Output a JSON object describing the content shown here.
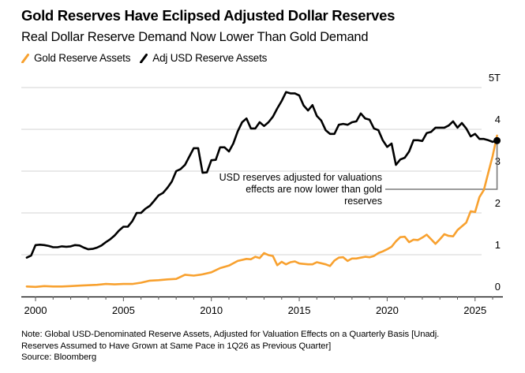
{
  "header": {
    "title": "Gold Reserves Have Eclipsed Adjusted Dollar Reserves",
    "subtitle": "Real Dollar Reserve Demand Now Lower Than Gold Demand"
  },
  "legend": [
    {
      "label": "Gold Reserve Assets",
      "color": "#f8a12f",
      "icon": "line-swatch-icon"
    },
    {
      "label": "Adj USD Reserve Assets",
      "color": "#000000",
      "icon": "line-swatch-icon"
    }
  ],
  "footer": {
    "note_line1": "Note: Global USD-Denominated Reserve Assets, Adjusted for Valuation Effects on a Quarterly Basis [Unadj.",
    "note_line2": "Reserves Assumed to Have Grown at Same Pace in 1Q26 as Previous Quarter]",
    "source": "Source: Bloomberg"
  },
  "chart_data": {
    "type": "line",
    "title": "Gold Reserves Have Eclipsed Adjusted Dollar Reserves",
    "subtitle": "Real Dollar Reserve Demand Now Lower Than Gold Demand",
    "xlabel": "",
    "ylabel": "",
    "xlim": [
      1999.4,
      2026.6
    ],
    "ylim": [
      0,
      5
    ],
    "x_ticks": [
      2000,
      2005,
      2010,
      2015,
      2020,
      2025
    ],
    "x_tick_labels": [
      "2000",
      "2005",
      "2010",
      "2015",
      "2020",
      "2025"
    ],
    "y_ticks": [
      0,
      1,
      2,
      3,
      4,
      5
    ],
    "y_tick_labels": [
      "0",
      "1",
      "2",
      "3",
      "4",
      "5T"
    ],
    "y_axis_position": "right",
    "grid": "horizontal",
    "legend_position": "top-left",
    "series": [
      {
        "name": "Gold Reserve Assets",
        "color": "#f8a12f",
        "points": [
          [
            1999.5,
            0.24
          ],
          [
            2000.0,
            0.23
          ],
          [
            2000.5,
            0.25
          ],
          [
            2001.0,
            0.24
          ],
          [
            2001.5,
            0.24
          ],
          [
            2002.0,
            0.25
          ],
          [
            2002.5,
            0.26
          ],
          [
            2003.0,
            0.27
          ],
          [
            2003.5,
            0.28
          ],
          [
            2004.0,
            0.3
          ],
          [
            2004.5,
            0.29
          ],
          [
            2005.0,
            0.3
          ],
          [
            2005.5,
            0.3
          ],
          [
            2006.0,
            0.33
          ],
          [
            2006.5,
            0.38
          ],
          [
            2007.0,
            0.39
          ],
          [
            2007.5,
            0.41
          ],
          [
            2008.0,
            0.42
          ],
          [
            2008.5,
            0.52
          ],
          [
            2009.0,
            0.5
          ],
          [
            2009.5,
            0.53
          ],
          [
            2010.0,
            0.58
          ],
          [
            2010.5,
            0.68
          ],
          [
            2011.0,
            0.74
          ],
          [
            2011.5,
            0.85
          ],
          [
            2012.0,
            0.9
          ],
          [
            2012.25,
            0.89
          ],
          [
            2012.5,
            0.95
          ],
          [
            2012.75,
            0.92
          ],
          [
            2013.0,
            1.04
          ],
          [
            2013.25,
            0.99
          ],
          [
            2013.5,
            0.97
          ],
          [
            2013.75,
            0.75
          ],
          [
            2014.0,
            0.83
          ],
          [
            2014.25,
            0.77
          ],
          [
            2014.5,
            0.82
          ],
          [
            2014.75,
            0.84
          ],
          [
            2015.0,
            0.79
          ],
          [
            2015.5,
            0.77
          ],
          [
            2015.75,
            0.77
          ],
          [
            2016.0,
            0.82
          ],
          [
            2016.5,
            0.77
          ],
          [
            2016.75,
            0.73
          ],
          [
            2017.0,
            0.86
          ],
          [
            2017.25,
            0.93
          ],
          [
            2017.5,
            0.94
          ],
          [
            2017.75,
            0.85
          ],
          [
            2018.0,
            0.91
          ],
          [
            2018.25,
            0.91
          ],
          [
            2018.5,
            0.93
          ],
          [
            2018.75,
            0.95
          ],
          [
            2019.0,
            0.94
          ],
          [
            2019.25,
            0.97
          ],
          [
            2019.5,
            1.04
          ],
          [
            2019.75,
            1.08
          ],
          [
            2020.0,
            1.13
          ],
          [
            2020.25,
            1.19
          ],
          [
            2020.5,
            1.32
          ],
          [
            2020.75,
            1.42
          ],
          [
            2021.0,
            1.43
          ],
          [
            2021.25,
            1.3
          ],
          [
            2021.5,
            1.36
          ],
          [
            2021.75,
            1.35
          ],
          [
            2022.0,
            1.41
          ],
          [
            2022.25,
            1.48
          ],
          [
            2022.5,
            1.37
          ],
          [
            2022.75,
            1.26
          ],
          [
            2023.0,
            1.37
          ],
          [
            2023.25,
            1.49
          ],
          [
            2023.5,
            1.45
          ],
          [
            2023.75,
            1.44
          ],
          [
            2024.0,
            1.59
          ],
          [
            2024.5,
            1.77
          ],
          [
            2024.75,
            2.04
          ],
          [
            2025.0,
            2.02
          ],
          [
            2025.25,
            2.38
          ],
          [
            2025.5,
            2.55
          ],
          [
            2025.75,
            2.96
          ],
          [
            2026.0,
            3.36
          ],
          [
            2026.25,
            3.85
          ]
        ]
      },
      {
        "name": "Adj USD Reserve Assets",
        "color": "#000000",
        "points": [
          [
            1999.5,
            0.93
          ],
          [
            1999.75,
            0.98
          ],
          [
            2000.0,
            1.23
          ],
          [
            2000.25,
            1.24
          ],
          [
            2000.5,
            1.23
          ],
          [
            2000.75,
            1.21
          ],
          [
            2001.0,
            1.18
          ],
          [
            2001.25,
            1.18
          ],
          [
            2001.5,
            1.2
          ],
          [
            2001.75,
            1.19
          ],
          [
            2002.0,
            1.2
          ],
          [
            2002.25,
            1.23
          ],
          [
            2002.5,
            1.22
          ],
          [
            2002.75,
            1.17
          ],
          [
            2003.0,
            1.13
          ],
          [
            2003.25,
            1.14
          ],
          [
            2003.5,
            1.17
          ],
          [
            2003.75,
            1.22
          ],
          [
            2004.0,
            1.3
          ],
          [
            2004.25,
            1.37
          ],
          [
            2004.5,
            1.46
          ],
          [
            2004.75,
            1.58
          ],
          [
            2005.0,
            1.67
          ],
          [
            2005.25,
            1.67
          ],
          [
            2005.5,
            1.8
          ],
          [
            2005.75,
            2.0
          ],
          [
            2006.0,
            2.0
          ],
          [
            2006.25,
            2.1
          ],
          [
            2006.5,
            2.17
          ],
          [
            2006.75,
            2.29
          ],
          [
            2007.0,
            2.42
          ],
          [
            2007.25,
            2.48
          ],
          [
            2007.5,
            2.6
          ],
          [
            2007.75,
            2.75
          ],
          [
            2008.0,
            3.0
          ],
          [
            2008.25,
            3.05
          ],
          [
            2008.5,
            3.15
          ],
          [
            2008.75,
            3.35
          ],
          [
            2009.0,
            3.55
          ],
          [
            2009.25,
            3.55
          ],
          [
            2009.5,
            2.96
          ],
          [
            2009.75,
            2.97
          ],
          [
            2010.0,
            3.26
          ],
          [
            2010.25,
            3.27
          ],
          [
            2010.5,
            3.57
          ],
          [
            2010.75,
            3.57
          ],
          [
            2011.0,
            3.47
          ],
          [
            2011.25,
            3.66
          ],
          [
            2011.5,
            3.95
          ],
          [
            2011.75,
            4.17
          ],
          [
            2012.0,
            4.26
          ],
          [
            2012.25,
            4.02
          ],
          [
            2012.5,
            4.02
          ],
          [
            2012.75,
            4.17
          ],
          [
            2013.0,
            4.08
          ],
          [
            2013.25,
            4.17
          ],
          [
            2013.5,
            4.3
          ],
          [
            2013.75,
            4.5
          ],
          [
            2014.0,
            4.68
          ],
          [
            2014.25,
            4.89
          ],
          [
            2014.5,
            4.86
          ],
          [
            2014.75,
            4.86
          ],
          [
            2015.0,
            4.81
          ],
          [
            2015.25,
            4.57
          ],
          [
            2015.5,
            4.45
          ],
          [
            2015.75,
            4.58
          ],
          [
            2016.0,
            4.32
          ],
          [
            2016.25,
            4.21
          ],
          [
            2016.5,
            3.98
          ],
          [
            2016.75,
            3.89
          ],
          [
            2017.0,
            3.89
          ],
          [
            2017.25,
            4.11
          ],
          [
            2017.5,
            4.13
          ],
          [
            2017.75,
            4.11
          ],
          [
            2018.0,
            4.17
          ],
          [
            2018.25,
            4.19
          ],
          [
            2018.5,
            4.38
          ],
          [
            2018.75,
            4.26
          ],
          [
            2019.0,
            4.23
          ],
          [
            2019.25,
            4.02
          ],
          [
            2019.5,
            3.98
          ],
          [
            2019.75,
            3.74
          ],
          [
            2020.0,
            3.58
          ],
          [
            2020.25,
            3.66
          ],
          [
            2020.5,
            3.15
          ],
          [
            2020.75,
            3.28
          ],
          [
            2021.0,
            3.32
          ],
          [
            2021.25,
            3.47
          ],
          [
            2021.5,
            3.74
          ],
          [
            2021.75,
            3.74
          ],
          [
            2022.0,
            3.72
          ],
          [
            2022.25,
            3.91
          ],
          [
            2022.5,
            3.94
          ],
          [
            2022.75,
            4.04
          ],
          [
            2023.0,
            4.04
          ],
          [
            2023.25,
            4.04
          ],
          [
            2023.5,
            4.09
          ],
          [
            2023.75,
            4.19
          ],
          [
            2024.0,
            4.04
          ],
          [
            2024.25,
            4.15
          ],
          [
            2024.5,
            4.02
          ],
          [
            2024.75,
            3.83
          ],
          [
            2025.0,
            3.89
          ],
          [
            2025.25,
            3.77
          ],
          [
            2025.5,
            3.77
          ],
          [
            2025.75,
            3.74
          ],
          [
            2026.0,
            3.7
          ],
          [
            2026.25,
            3.73
          ]
        ]
      }
    ],
    "annotations": [
      {
        "text_lines": [
          "USD reserves adjusted for valuations",
          "effects are now lower than gold",
          "reserves"
        ],
        "target": "Adj USD Reserve Assets endpoint (1Q26)",
        "marker": "dot"
      }
    ]
  }
}
